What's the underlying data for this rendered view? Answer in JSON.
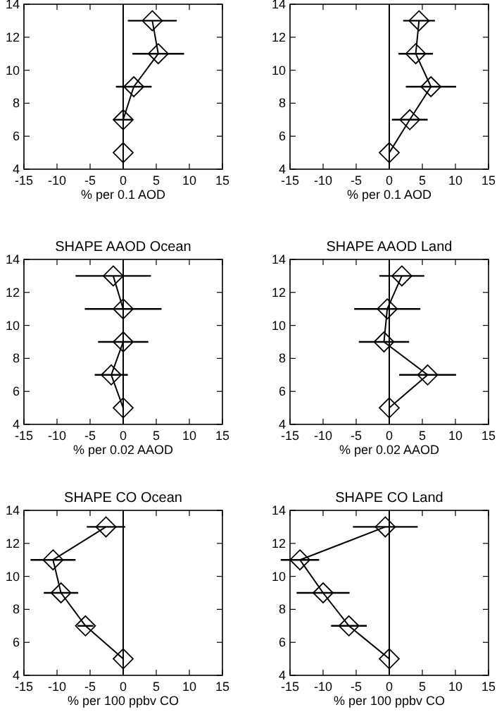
{
  "chart_data": [
    {
      "type": "line",
      "xlabel": "% per 0.1 AOD",
      "xlim": [
        -15,
        15
      ],
      "xticks": [
        -15,
        -10,
        -5,
        0,
        5,
        10,
        15
      ],
      "ylim": [
        4,
        14
      ],
      "yticks": [
        4,
        6,
        8,
        10,
        12,
        14
      ],
      "marker": "diamond",
      "line_style": "solid",
      "ref_lines": [
        {
          "axis": "x",
          "value": 0,
          "color": "#000000"
        }
      ],
      "series": [
        {
          "color": "#000000",
          "x": [
            4.4,
            5.3,
            1.6,
            0,
            0
          ],
          "values": [
            13,
            11,
            9,
            7,
            5
          ],
          "xerrors": [
            3.7,
            3.9,
            2.7,
            1.5,
            null
          ]
        }
      ]
    },
    {
      "type": "line",
      "xlabel": "% per 0.1 AOD",
      "xlim": [
        -15,
        15
      ],
      "xticks": [
        -15,
        -10,
        -5,
        0,
        5,
        10,
        15
      ],
      "ylim": [
        4,
        14
      ],
      "yticks": [
        4,
        6,
        8,
        10,
        12,
        14
      ],
      "marker": "diamond",
      "line_style": "solid",
      "ref_lines": [
        {
          "axis": "x",
          "value": 0,
          "color": "#000000"
        }
      ],
      "series": [
        {
          "color": "#000000",
          "x": [
            4.5,
            4.0,
            6.3,
            3.1,
            0
          ],
          "values": [
            13,
            11,
            9,
            7,
            5
          ],
          "xerrors": [
            2.4,
            2.6,
            3.8,
            2.7,
            null
          ]
        }
      ]
    },
    {
      "type": "line",
      "title": "SHAPE AAOD Ocean",
      "xlabel": "% per 0.02 AAOD",
      "xlim": [
        -15,
        15
      ],
      "xticks": [
        -15,
        -10,
        -5,
        0,
        5,
        10,
        15
      ],
      "ylim": [
        4,
        14
      ],
      "yticks": [
        4,
        6,
        8,
        10,
        12,
        14
      ],
      "marker": "diamond",
      "line_style": "solid",
      "ref_lines": [
        {
          "axis": "x",
          "value": 0,
          "color": "#000000"
        }
      ],
      "series": [
        {
          "color": "#000000",
          "x": [
            -1.5,
            0,
            0,
            -1.8,
            0
          ],
          "values": [
            13,
            11,
            9,
            7,
            5
          ],
          "xerrors": [
            5.7,
            5.8,
            3.8,
            2.5,
            null
          ]
        }
      ]
    },
    {
      "type": "line",
      "title": "SHAPE AAOD Land",
      "xlabel": "% per 0.02 AAOD",
      "xlim": [
        -15,
        15
      ],
      "xticks": [
        -15,
        -10,
        -5,
        0,
        5,
        10,
        15
      ],
      "ylim": [
        4,
        14
      ],
      "yticks": [
        4,
        6,
        8,
        10,
        12,
        14
      ],
      "marker": "diamond",
      "line_style": "solid",
      "ref_lines": [
        {
          "axis": "x",
          "value": 0,
          "color": "#000000"
        }
      ],
      "series": [
        {
          "color": "#000000",
          "x": [
            1.9,
            -0.3,
            -0.8,
            5.8,
            0
          ],
          "values": [
            13,
            11,
            9,
            7,
            5
          ],
          "xerrors": [
            3.4,
            5.0,
            3.8,
            4.3,
            null
          ]
        }
      ]
    },
    {
      "type": "line",
      "title": "SHAPE CO Ocean",
      "xlabel": "% per 100 ppbv CO",
      "xlim": [
        -15,
        15
      ],
      "xticks": [
        -15,
        -10,
        -5,
        0,
        5,
        10,
        15
      ],
      "ylim": [
        4,
        14
      ],
      "yticks": [
        4,
        6,
        8,
        10,
        12,
        14
      ],
      "marker": "diamond",
      "line_style": "solid",
      "ref_lines": [
        {
          "axis": "x",
          "value": 0,
          "color": "#000000"
        }
      ],
      "series": [
        {
          "color": "#000000",
          "x": [
            -2.6,
            -10.6,
            -9.4,
            -5.7,
            0
          ],
          "values": [
            13,
            11,
            9,
            7,
            5
          ],
          "xerrors": [
            2.9,
            3.4,
            2.6,
            1.2,
            null
          ]
        }
      ]
    },
    {
      "type": "line",
      "title": "SHAPE CO Land",
      "xlabel": "% per 100 ppbv CO",
      "xlim": [
        -15,
        15
      ],
      "xticks": [
        -15,
        -10,
        -5,
        0,
        5,
        10,
        15
      ],
      "ylim": [
        4,
        14
      ],
      "yticks": [
        4,
        6,
        8,
        10,
        12,
        14
      ],
      "marker": "diamond",
      "line_style": "solid",
      "ref_lines": [
        {
          "axis": "x",
          "value": 0,
          "color": "#000000"
        }
      ],
      "series": [
        {
          "color": "#000000",
          "x": [
            -0.6,
            -13.5,
            -10.0,
            -6.1,
            0
          ],
          "values": [
            13,
            11,
            9,
            7,
            5
          ],
          "xerrors": [
            4.9,
            2.9,
            4.0,
            2.7,
            null
          ]
        }
      ]
    }
  ]
}
